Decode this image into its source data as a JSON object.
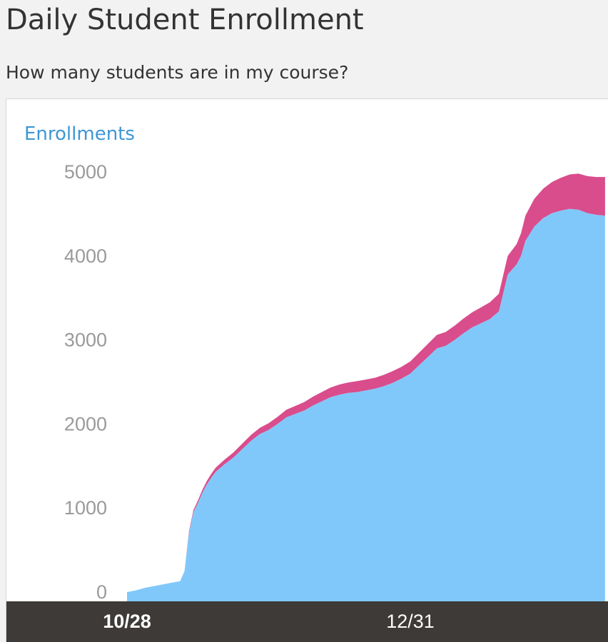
{
  "page": {
    "title": "Daily Student Enrollment",
    "subtitle": "How many students are in my course?"
  },
  "colors": {
    "primary_series": "#81c8fa",
    "secondary_series": "#d94d8c",
    "axis_label": "#3d97d4",
    "y_tick": "#9a9a9a",
    "x_axis_bar": "#3d3a37",
    "x_tick": "#ffffff"
  },
  "chart_data": {
    "type": "area",
    "stacked": true,
    "title": "",
    "ylabel": "Enrollments",
    "ylim": [
      0,
      5000
    ],
    "yticks": [
      0,
      1000,
      2000,
      3000,
      4000,
      5000
    ],
    "xtick_labels": [
      "10/28",
      "12/31"
    ],
    "xtick_days": [
      0,
      64
    ],
    "xlim_days": [
      -2,
      108
    ],
    "grid": false,
    "legend": "none",
    "days": [
      0,
      2,
      4,
      6,
      8,
      10,
      12,
      13,
      14,
      15,
      16,
      17,
      18,
      19,
      20,
      22,
      24,
      26,
      28,
      30,
      32,
      34,
      36,
      38,
      40,
      42,
      44,
      46,
      48,
      50,
      52,
      54,
      56,
      58,
      60,
      62,
      64,
      66,
      68,
      70,
      72,
      74,
      76,
      78,
      80,
      82,
      84,
      86,
      88,
      89,
      90,
      92,
      94,
      96,
      98,
      100,
      102,
      104,
      106,
      108
    ],
    "series": [
      {
        "values": [
          0,
          20,
          50,
          70,
          90,
          110,
          130,
          250,
          700,
          950,
          1060,
          1180,
          1280,
          1360,
          1430,
          1520,
          1600,
          1700,
          1800,
          1880,
          1930,
          2000,
          2080,
          2120,
          2160,
          2220,
          2270,
          2320,
          2350,
          2370,
          2380,
          2400,
          2420,
          2450,
          2490,
          2540,
          2600,
          2700,
          2800,
          2900,
          2930,
          3000,
          3080,
          3150,
          3200,
          3250,
          3340,
          3780,
          3900,
          4000,
          4180,
          4350,
          4450,
          4510,
          4540,
          4560,
          4550,
          4510,
          4490,
          4480
        ],
        "color": "#81c8fa"
      },
      {
        "values": [
          0,
          0,
          0,
          0,
          0,
          0,
          0,
          0,
          20,
          25,
          30,
          35,
          40,
          45,
          50,
          55,
          60,
          65,
          70,
          75,
          80,
          85,
          90,
          95,
          100,
          105,
          110,
          115,
          120,
          125,
          130,
          130,
          130,
          135,
          140,
          140,
          145,
          150,
          155,
          160,
          165,
          170,
          175,
          180,
          190,
          200,
          210,
          220,
          240,
          270,
          300,
          330,
          350,
          370,
          390,
          410,
          430,
          440,
          450,
          460
        ],
        "color": "#d94d8c"
      }
    ]
  }
}
